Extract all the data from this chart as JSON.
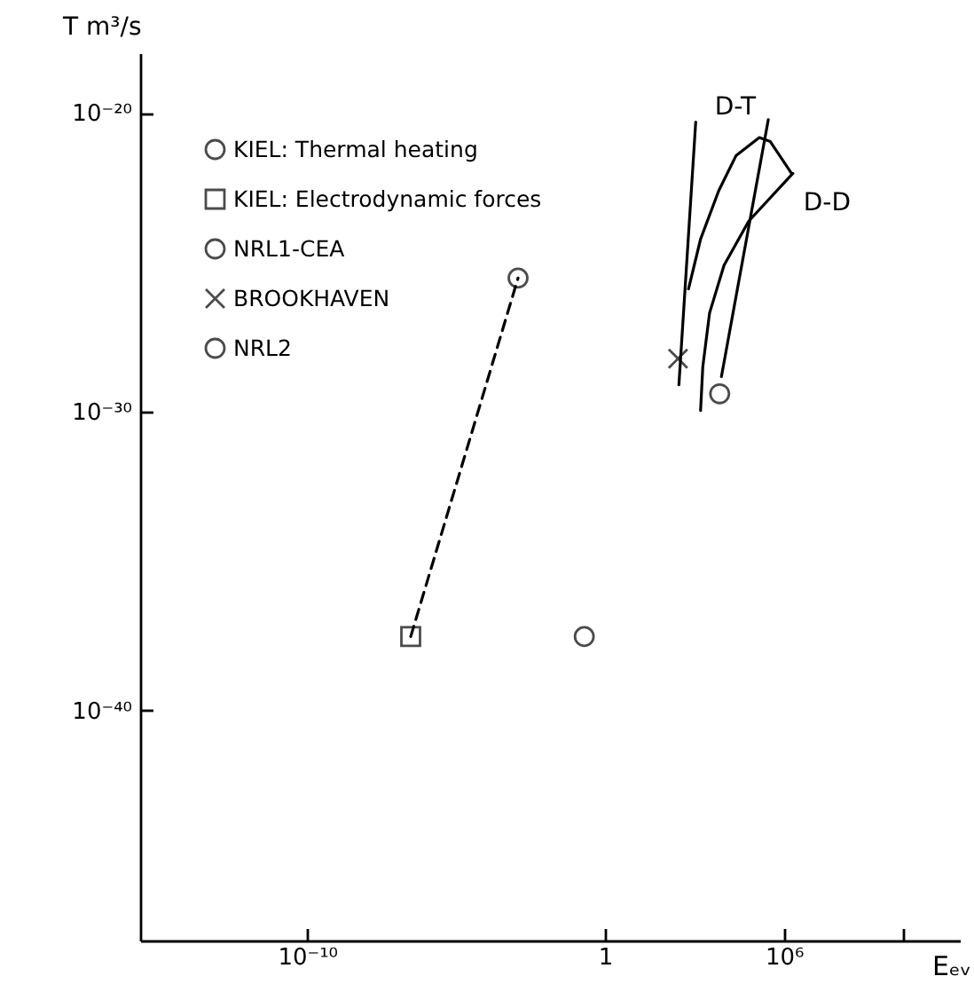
{
  "chart_data": {
    "type": "scatter",
    "xlabel": "Eₑᵥ",
    "ylabel": "T m³/s",
    "log": "xy",
    "xlim": [
      2.5e-16,
      800000000000.0
    ],
    "ylim": [
      2e-48,
      1e-18
    ],
    "xticks": [
      {
        "value": 1e-10,
        "label": "10⁻¹⁰"
      },
      {
        "value": 1,
        "label": "1"
      },
      {
        "value": 1000000.0,
        "label": "10⁶"
      },
      {
        "value": 10000000000.0,
        "label": null
      }
    ],
    "yticks": [
      {
        "value": 1e-20,
        "label": "10⁻²⁰"
      },
      {
        "value": 1e-30,
        "label": "10⁻³⁰"
      },
      {
        "value": 1e-40,
        "label": "10⁻⁴⁰"
      }
    ],
    "grid": false,
    "legend": "top left",
    "series": [
      {
        "name": "KIEL: Thermal heating",
        "color": "#000000",
        "marker": "circle",
        "x": [
          0.2
        ],
        "values": [
          3e-38
        ]
      },
      {
        "name": "KIEL: Electrodynamic forces",
        "color": "#000000",
        "marker": "square",
        "x": [
          3e-07
        ],
        "values": [
          3e-38
        ]
      },
      {
        "name": "NRL1-CEA",
        "color": "#000000",
        "marker": "circle",
        "x": [
          0.0012
        ],
        "values": [
          3e-26
        ]
      },
      {
        "name": "BROOKHAVEN",
        "color": "#000000",
        "marker": "cross",
        "x": [
          280
        ],
        "values": [
          6e-29
        ]
      },
      {
        "name": "NRL2",
        "color": "#000000",
        "marker": "circle",
        "x": [
          7000
        ],
        "values": [
          4e-30
        ]
      },
      {
        "type": "line",
        "color": "#000000",
        "line_style": "dashed",
        "x": [
          3e-07,
          0.0012
        ],
        "values": [
          3e-38,
          3e-26
        ]
      },
      {
        "type": "line",
        "color": "#000000",
        "line_style": "solid",
        "x": [
          1100,
          300
        ],
        "values": [
          5e-21,
          8e-30
        ]
      },
      {
        "type": "line",
        "color": "#000000",
        "line_style": "solid",
        "x": [
          300000.0,
          8000
        ],
        "values": [
          6e-21,
          1.5e-29
        ]
      },
      {
        "type": "line",
        "name": "D-T",
        "color": "#000000",
        "line_style": "solid",
        "x": [
          630,
          1600,
          6500,
          25000,
          150000,
          350000,
          1800000.0
        ],
        "values": [
          1.3e-26,
          6e-25,
          2.5e-23,
          3.8e-22,
          1.5e-21,
          1.1e-21,
          9.5e-23
        ]
      },
      {
        "type": "line",
        "name": "D-D",
        "color": "#000000",
        "line_style": "solid",
        "x": [
          2000000.0,
          66000,
          9800,
          3200,
          1900,
          1600
        ],
        "values": [
          9.5e-23,
          2.4e-24,
          8e-26,
          2e-27,
          3.2e-29,
          1.1e-30
        ]
      }
    ]
  }
}
